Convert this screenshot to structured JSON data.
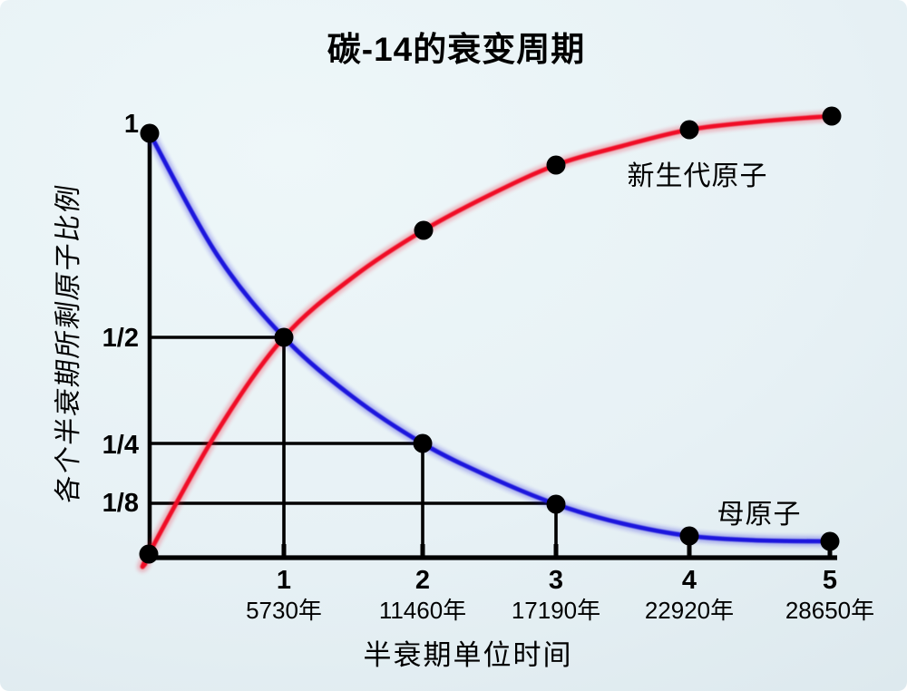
{
  "title": "碳-14的衰变周期",
  "y_axis": {
    "label": "各个半衰期所剩原子比例",
    "tick_labels": [
      "1",
      "1/2",
      "1/4",
      "1/8"
    ]
  },
  "x_axis": {
    "label": "半衰期单位时间",
    "ticks": [
      {
        "number": "1",
        "years": "5730年"
      },
      {
        "number": "2",
        "years": "11460年"
      },
      {
        "number": "3",
        "years": "17190年"
      },
      {
        "number": "4",
        "years": "22920年"
      },
      {
        "number": "5",
        "years": "28650年"
      }
    ]
  },
  "curve_labels": {
    "new_atoms": "新生代原子",
    "parent_atoms": "母原子"
  },
  "colors": {
    "parent_curve": "#1c12dd",
    "new_curve": "#f00b26",
    "axis": "#000000",
    "text": "#000000",
    "dot": "#000000",
    "background_light": "#eef7f9",
    "background_dark": "#d7e4eb"
  },
  "chart_data": {
    "type": "line",
    "title": "碳-14的衰变周期",
    "xlabel": "半衰期单位时间",
    "ylabel": "各个半衰期所剩原子比例",
    "x": [
      0,
      1,
      2,
      3,
      4,
      5
    ],
    "x_tick_labels": [
      "1",
      "2",
      "3",
      "4",
      "5"
    ],
    "x_tick_sublabels_years": [
      "5730年",
      "11460年",
      "17190年",
      "22920年",
      "28650年"
    ],
    "y_tick_labels": [
      "1",
      "1/2",
      "1/4",
      "1/8"
    ],
    "y_tick_values": [
      1,
      0.5,
      0.25,
      0.125
    ],
    "xlim": [
      0,
      5
    ],
    "ylim": [
      0,
      1
    ],
    "grid": false,
    "legend_position": "labels-next-to-curves",
    "series": [
      {
        "name": "母原子",
        "color": "#1c12dd",
        "values": [
          1,
          0.5,
          0.25,
          0.125,
          0.0625,
          0.03125
        ]
      },
      {
        "name": "新生代原子",
        "color": "#f00b26",
        "values": [
          0,
          0.5,
          0.75,
          0.875,
          0.9375,
          0.96875
        ]
      }
    ],
    "guide_lines": [
      {
        "x": 1,
        "y": 0.5,
        "y_label": "1/2"
      },
      {
        "x": 2,
        "y": 0.25,
        "y_label": "1/4"
      },
      {
        "x": 3,
        "y": 0.125,
        "y_label": "1/8"
      }
    ],
    "annotations": [
      {
        "text": "新生代原子",
        "attached_to": "新生代原子",
        "near_x": 3.5
      },
      {
        "text": "母原子",
        "attached_to": "母原子",
        "near_x": 4.5
      }
    ]
  }
}
